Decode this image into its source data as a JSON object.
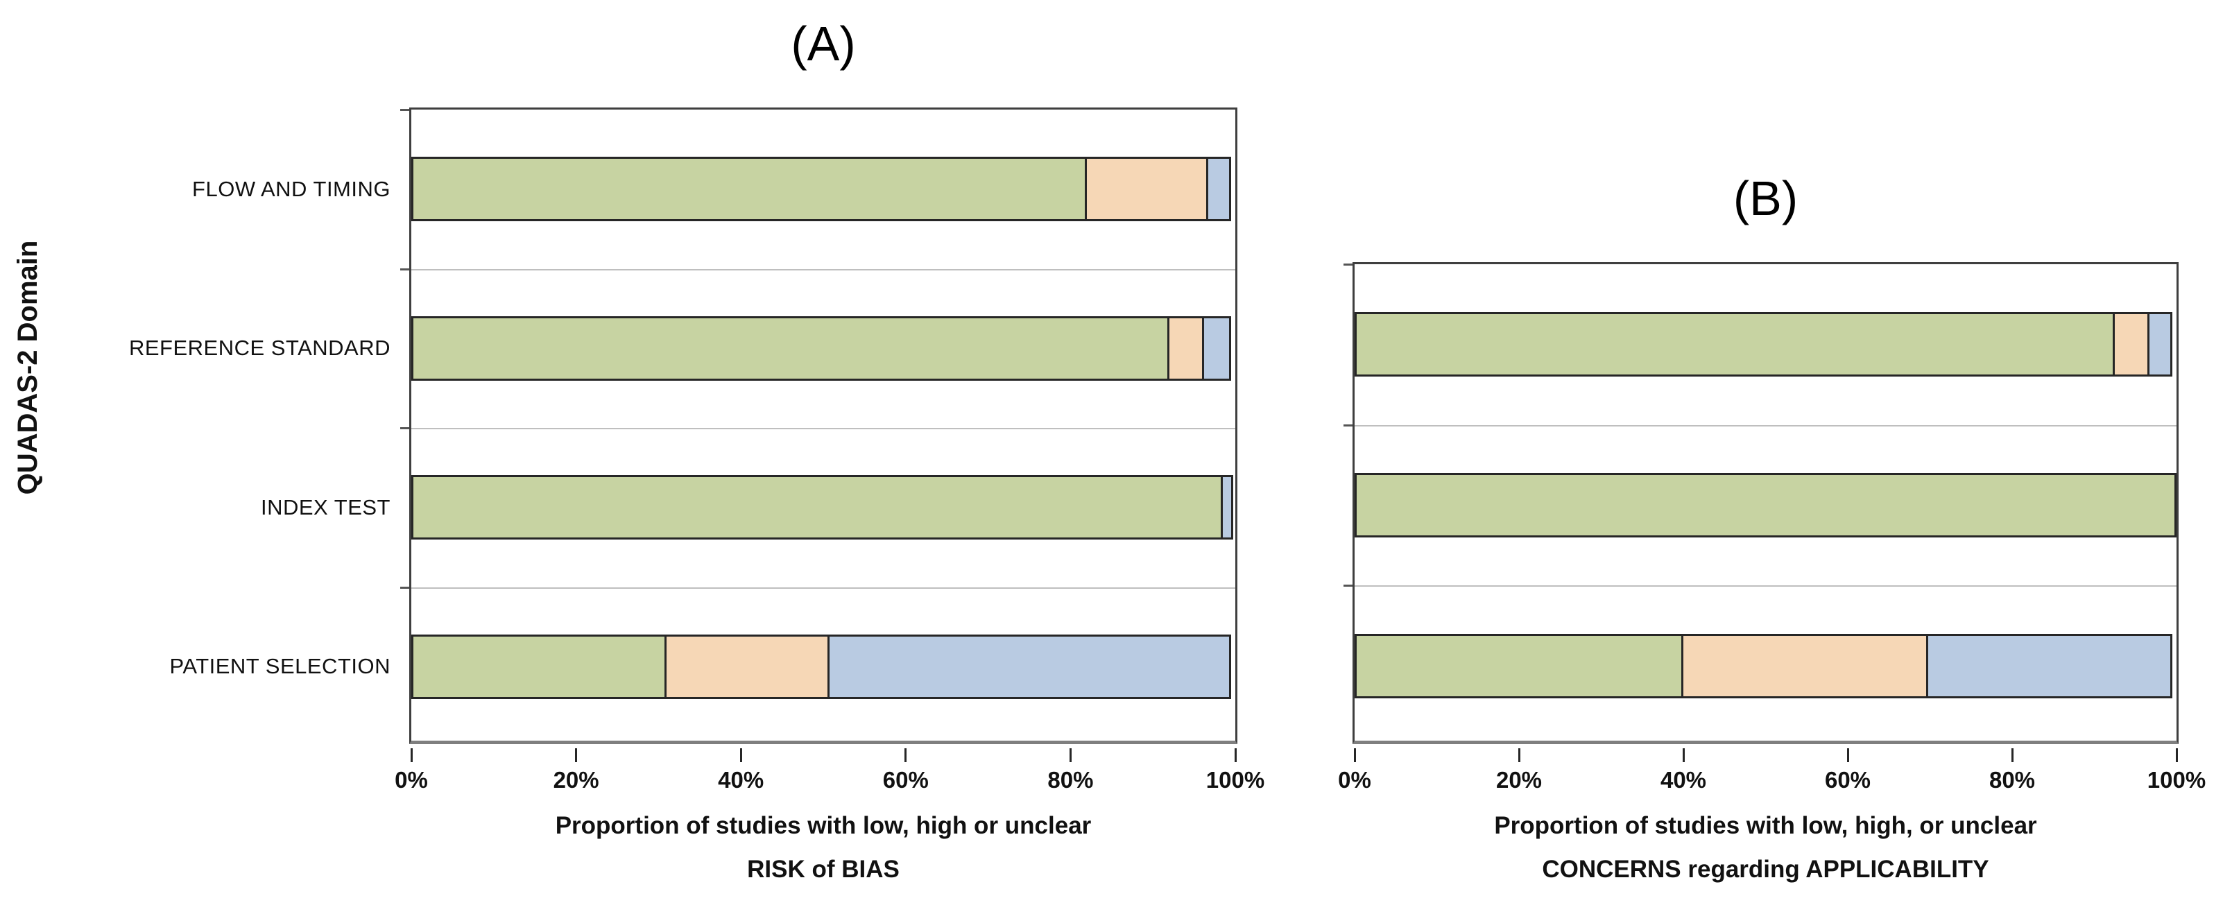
{
  "figure": {
    "y_axis_label": "QUADAS-2 Domain",
    "background": "#ffffff",
    "status_colors": {
      "low": "#c7d3a2",
      "high": "#f6d7b6",
      "unclear": "#b9cbe2"
    },
    "legend": "none (no legend shown)"
  },
  "chart_data": [
    {
      "type": "bar",
      "panel": "A",
      "title": "(A)",
      "orientation": "horizontal",
      "stacked": true,
      "xlim": [
        0,
        100
      ],
      "x_ticks": [
        "0%",
        "20%",
        "40%",
        "60%",
        "80%",
        "100%"
      ],
      "xlabel_line1": "Proportion of studies with low, high or unclear",
      "xlabel_line2": "RISK of BIAS",
      "ylabel": "QUADAS-2 Domain",
      "categories_order": "top-to-bottom",
      "categories": [
        "FLOW AND TIMING",
        "REFERENCE STANDARD",
        "INDEX TEST",
        "PATIENT SELECTION"
      ],
      "series": [
        {
          "name": "Low",
          "color": "#c7d3a2",
          "values": [
            82,
            92,
            98.5,
            31
          ]
        },
        {
          "name": "High",
          "color": "#f6d7b6",
          "values": [
            15,
            4.5,
            0,
            20
          ]
        },
        {
          "name": "Unclear",
          "color": "#b9cbe2",
          "values": [
            3,
            3.5,
            1.5,
            49
          ]
        }
      ]
    },
    {
      "type": "bar",
      "panel": "B",
      "title": "(B)",
      "orientation": "horizontal",
      "stacked": true,
      "xlim": [
        0,
        100
      ],
      "x_ticks": [
        "0%",
        "20%",
        "40%",
        "60%",
        "80%",
        "100%"
      ],
      "xlabel_line1": "Proportion of studies with low, high, or unclear",
      "xlabel_line2": "CONCERNS regarding APPLICABILITY",
      "ylabel": "",
      "categories_order": "top-to-bottom",
      "categories": [
        "REFERENCE STANDARD",
        "INDEX TEST",
        "PATIENT SELECTION"
      ],
      "series": [
        {
          "name": "Low",
          "color": "#c7d3a2",
          "values": [
            92.5,
            100,
            40
          ]
        },
        {
          "name": "High",
          "color": "#f6d7b6",
          "values": [
            4.5,
            0,
            30
          ]
        },
        {
          "name": "Unclear",
          "color": "#b9cbe2",
          "values": [
            3,
            0,
            30
          ]
        }
      ]
    }
  ]
}
